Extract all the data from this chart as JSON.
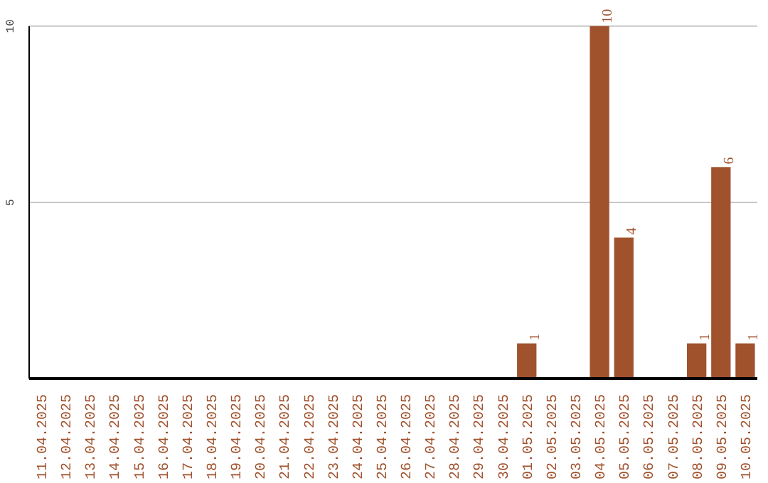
{
  "chart_data": {
    "type": "bar",
    "categories": [
      "11.04.2025",
      "12.04.2025",
      "13.04.2025",
      "14.04.2025",
      "15.04.2025",
      "16.04.2025",
      "17.04.2025",
      "18.04.2025",
      "19.04.2025",
      "20.04.2025",
      "21.04.2025",
      "22.04.2025",
      "23.04.2025",
      "24.04.2025",
      "25.04.2025",
      "26.04.2025",
      "27.04.2025",
      "28.04.2025",
      "29.04.2025",
      "30.04.2025",
      "01.05.2025",
      "02.05.2025",
      "03.05.2025",
      "04.05.2025",
      "05.05.2025",
      "06.05.2025",
      "07.05.2025",
      "08.05.2025",
      "09.05.2025",
      "10.05.2025"
    ],
    "values": [
      0,
      0,
      0,
      0,
      0,
      0,
      0,
      0,
      0,
      0,
      0,
      0,
      0,
      0,
      0,
      0,
      0,
      0,
      0,
      0,
      1,
      0,
      0,
      10,
      4,
      0,
      0,
      1,
      6,
      1
    ],
    "value_labels": [
      null,
      null,
      null,
      null,
      null,
      null,
      null,
      null,
      null,
      null,
      null,
      null,
      null,
      null,
      null,
      null,
      null,
      null,
      null,
      null,
      "1",
      null,
      null,
      "10",
      "4",
      null,
      null,
      "1",
      "6",
      "1"
    ],
    "color": "#a0522d",
    "ylim": [
      0,
      10
    ],
    "yticks": [
      5,
      10
    ],
    "grid": "y"
  }
}
